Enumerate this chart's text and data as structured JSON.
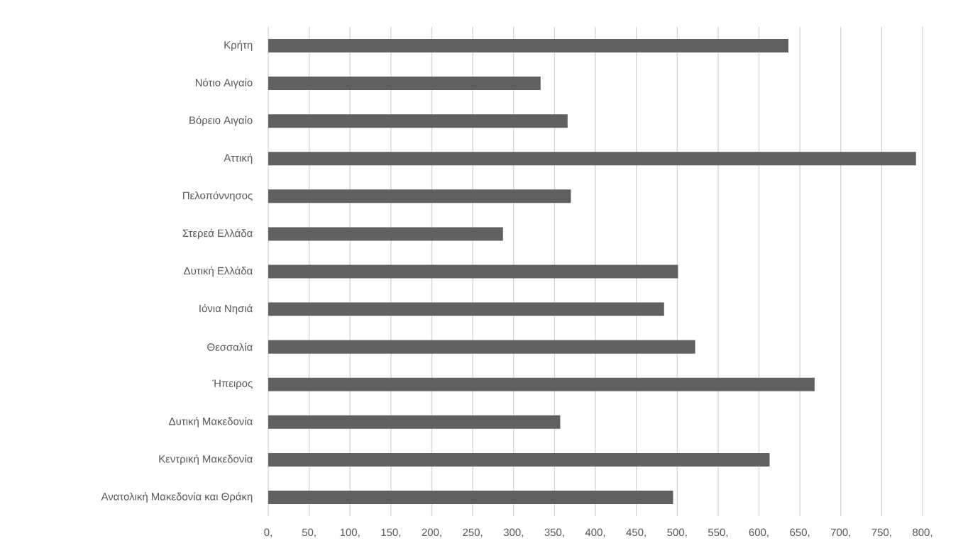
{
  "chart_data": {
    "type": "bar",
    "orientation": "horizontal",
    "color": "#606060",
    "grid": "x",
    "categories": [
      "Κρήτη",
      "Νότιο Αιγαίο",
      "Βόρειο Αιγαίο",
      "Αττική",
      "Πελοπόννησος",
      "Στερεά Ελλάδα",
      "Δυτική Ελλάδα",
      "Ιόνια Νησιά",
      "Θεσσαλία",
      "Ήπειρος",
      "Δυτική Μακεδονία",
      "Κεντρική Μακεδονία",
      "Ανατολική Μακεδονία και Θράκη"
    ],
    "values": [
      636,
      333,
      366,
      792,
      370,
      287,
      501,
      484,
      522,
      668,
      357,
      613,
      495
    ],
    "xlim": [
      0,
      800
    ],
    "xticks": [
      {
        "value": 0,
        "label": "0,"
      },
      {
        "value": 50,
        "label": "50,"
      },
      {
        "value": 100,
        "label": "100,"
      },
      {
        "value": 150,
        "label": "150,"
      },
      {
        "value": 200,
        "label": "200,"
      },
      {
        "value": 250,
        "label": "250,"
      },
      {
        "value": 300,
        "label": "300,"
      },
      {
        "value": 350,
        "label": "350,"
      },
      {
        "value": 400,
        "label": "400,"
      },
      {
        "value": 450,
        "label": "450,"
      },
      {
        "value": 500,
        "label": "500,"
      },
      {
        "value": 550,
        "label": "550,"
      },
      {
        "value": 600,
        "label": "600,"
      },
      {
        "value": 650,
        "label": "650,"
      },
      {
        "value": 700,
        "label": "700,"
      },
      {
        "value": 750,
        "label": "750,"
      },
      {
        "value": 800,
        "label": "800,"
      }
    ]
  }
}
